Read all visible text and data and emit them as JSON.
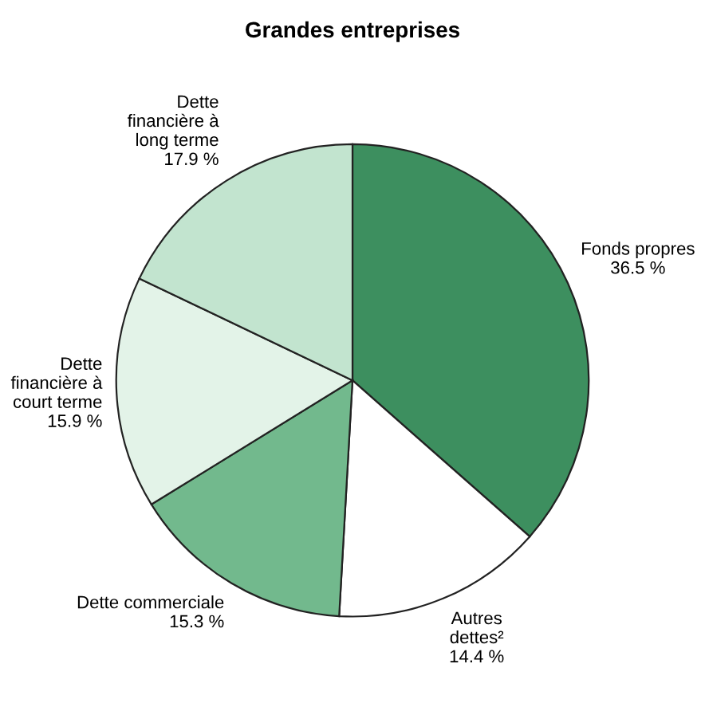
{
  "chart_data": {
    "type": "pie",
    "title": "Grandes entreprises",
    "categories": [
      "Fonds propres",
      "Autres\ndettes²",
      "Dette commerciale",
      "Dette\nfinancière à\ncourt terme",
      "Dette\nfinancière à\nlong terme"
    ],
    "values": [
      36.5,
      14.4,
      15.3,
      15.9,
      17.9
    ],
    "value_labels": [
      "36.5 %",
      "14.4 %",
      "15.3 %",
      "15.9 %",
      "17.9 %"
    ],
    "colors": [
      "#3d8f5f",
      "#ffffff",
      "#72b98d",
      "#e3f3e8",
      "#c2e4cf"
    ]
  }
}
